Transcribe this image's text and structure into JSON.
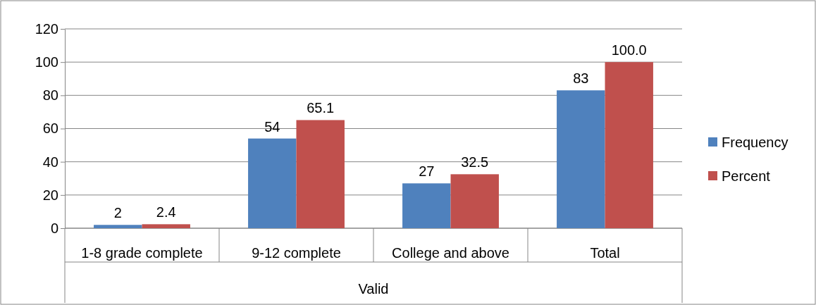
{
  "chart_data": {
    "type": "bar",
    "xlabel": "Valid",
    "categories": [
      "1-8 grade complete",
      "9-12 complete",
      "College and above",
      "Total"
    ],
    "series": [
      {
        "name": "Frequency",
        "color": "#4f81bd",
        "values": [
          2,
          54,
          27,
          83
        ],
        "value_labels": [
          "2",
          "54",
          "27",
          "83"
        ]
      },
      {
        "name": "Percent",
        "color": "#c0504d",
        "values": [
          2.4,
          65.1,
          32.5,
          100.0
        ],
        "value_labels": [
          "2.4",
          "65.1",
          "32.5",
          "100.0"
        ]
      }
    ],
    "ylim": [
      0,
      120
    ],
    "yticks": [
      0,
      20,
      40,
      60,
      80,
      100,
      120
    ],
    "grid": "y",
    "legend": "right"
  }
}
